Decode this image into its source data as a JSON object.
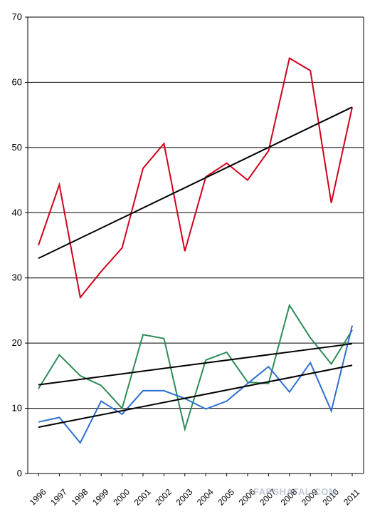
{
  "chart_data": {
    "type": "line",
    "title": "",
    "xlabel": "",
    "ylabel": "",
    "categories": [
      "1996",
      "1997",
      "1998",
      "1999",
      "2000",
      "2001",
      "2002",
      "2003",
      "2004",
      "2005",
      "2006",
      "2007",
      "2008",
      "2009",
      "2010",
      "2011"
    ],
    "ylim": [
      0,
      70
    ],
    "yticks": [
      0,
      10,
      20,
      30,
      40,
      50,
      60,
      70
    ],
    "grid": true,
    "legend": "none",
    "series": [
      {
        "color": "#d0021b",
        "values": [
          35.0,
          44.3,
          27.0,
          31.0,
          34.6,
          46.8,
          50.6,
          34.1,
          45.5,
          47.6,
          45.0,
          49.5,
          63.7,
          61.8,
          41.5,
          56.2
        ]
      },
      {
        "color": "#2e8b57",
        "values": [
          13.0,
          18.2,
          15.0,
          13.5,
          10.0,
          21.3,
          20.7,
          6.8,
          17.4,
          18.6,
          14.0,
          13.8,
          25.8,
          20.8,
          16.8,
          22.0
        ]
      },
      {
        "color": "#2f6fd0",
        "values": [
          7.9,
          8.6,
          4.7,
          11.1,
          9.1,
          12.7,
          12.7,
          11.5,
          9.9,
          11.1,
          13.8,
          16.4,
          12.5,
          17.0,
          9.6,
          22.7
        ]
      }
    ],
    "trendlines": [
      {
        "color": "#000000",
        "start": 33.0,
        "end": 56.2
      },
      {
        "color": "#000000",
        "start": 13.6,
        "end": 19.9
      },
      {
        "color": "#000000",
        "start": 7.1,
        "end": 16.6
      }
    ]
  },
  "watermark": "FARSHATAL.COM"
}
